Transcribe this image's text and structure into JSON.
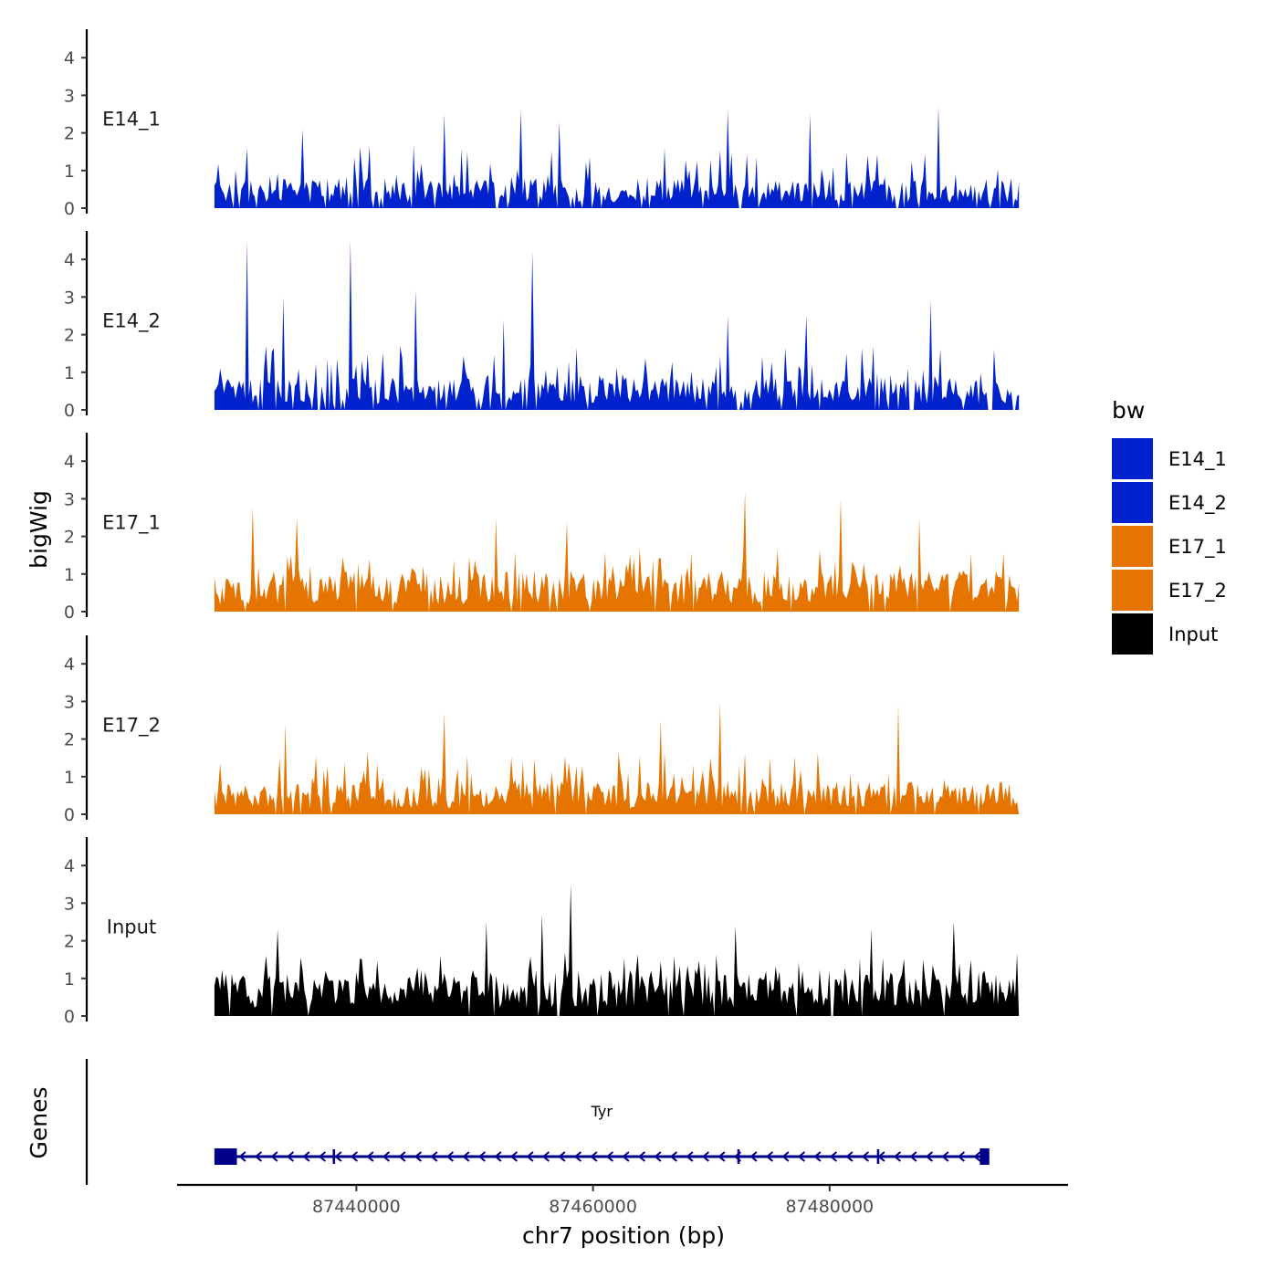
{
  "chart_data": {
    "type": "area",
    "subtype": "genome-browser-coverage-tracks",
    "ylabel": "bigWig",
    "xlabel": "chr7 position (bp)",
    "x_ticks": [
      87440000,
      87460000,
      87480000
    ],
    "x_tick_labels": [
      "87440000",
      "87460000",
      "87480000"
    ],
    "xlim": [
      87425000,
      87500000
    ],
    "ylim": [
      0,
      4.7
    ],
    "y_ticks": [
      0,
      1,
      2,
      3,
      4
    ],
    "y_tick_labels": [
      "0",
      "1",
      "2",
      "3",
      "4"
    ],
    "data_start": 87428000,
    "data_end": 87496000,
    "series": [
      {
        "name": "E14_1",
        "color": "#0022cc",
        "max_value": 2.7,
        "peaks": [
          [
            87430800,
            1.6
          ],
          [
            87435500,
            2.1
          ],
          [
            87447400,
            2.5
          ],
          [
            87453900,
            2.6
          ],
          [
            87457100,
            2.3
          ],
          [
            87471400,
            2.6
          ],
          [
            87478400,
            2.5
          ],
          [
            87489200,
            2.7
          ]
        ]
      },
      {
        "name": "E14_2",
        "color": "#0022cc",
        "max_value": 4.55,
        "peaks": [
          [
            87430800,
            4.5
          ],
          [
            87433800,
            3.0
          ],
          [
            87439500,
            4.5
          ],
          [
            87445000,
            3.2
          ],
          [
            87452500,
            2.4
          ],
          [
            87454800,
            4.2
          ],
          [
            87471400,
            2.5
          ],
          [
            87478000,
            2.5
          ],
          [
            87488600,
            2.9
          ]
        ]
      },
      {
        "name": "E17_1",
        "color": "#e57400",
        "max_value": 3.2,
        "peaks": [
          [
            87431200,
            2.8
          ],
          [
            87435000,
            2.5
          ],
          [
            87451800,
            2.5
          ],
          [
            87457800,
            2.4
          ],
          [
            87472900,
            3.2
          ],
          [
            87480900,
            3.0
          ],
          [
            87487600,
            2.5
          ]
        ]
      },
      {
        "name": "E17_2",
        "color": "#e57400",
        "max_value": 3.0,
        "peaks": [
          [
            87434000,
            2.4
          ],
          [
            87447400,
            2.7
          ],
          [
            87465700,
            2.5
          ],
          [
            87470800,
            3.0
          ],
          [
            87485800,
            2.9
          ]
        ]
      },
      {
        "name": "Input",
        "color": "#000000",
        "max_value": 3.5,
        "peaks": [
          [
            87433400,
            2.3
          ],
          [
            87451000,
            2.5
          ],
          [
            87455700,
            2.7
          ],
          [
            87458100,
            3.5
          ],
          [
            87472000,
            2.4
          ],
          [
            87483600,
            2.3
          ],
          [
            87490500,
            2.5
          ]
        ]
      }
    ],
    "legend": {
      "title": "bw",
      "position": "right",
      "items": [
        {
          "label": "E14_1",
          "color": "#0022cc"
        },
        {
          "label": "E14_2",
          "color": "#0022cc"
        },
        {
          "label": "E17_1",
          "color": "#e57400"
        },
        {
          "label": "E17_2",
          "color": "#e57400"
        },
        {
          "label": "Input",
          "color": "#000000"
        }
      ]
    },
    "genes": {
      "title": "Genes",
      "color": "#00008b",
      "items": [
        {
          "name": "Tyr",
          "start": 87428000,
          "end": 87493500,
          "strand": "-",
          "exons": [
            [
              87428000,
              87429900
            ],
            [
              87438000,
              87438200
            ],
            [
              87472200,
              87472400
            ],
            [
              87484000,
              87484200
            ],
            [
              87492700,
              87493500
            ]
          ]
        }
      ]
    }
  }
}
